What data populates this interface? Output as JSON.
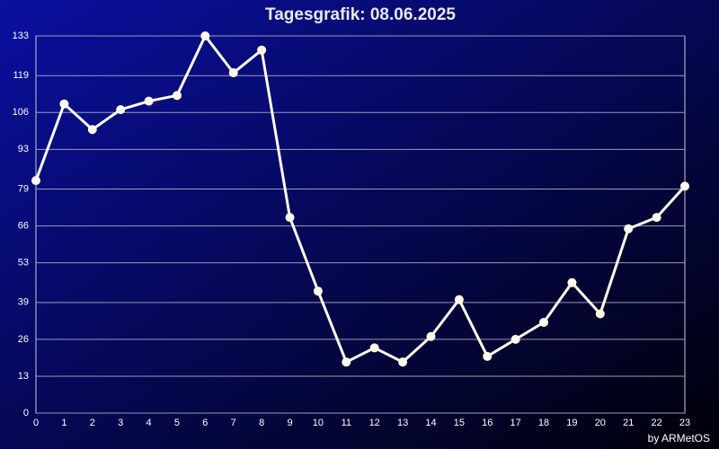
{
  "chart_data": {
    "type": "line",
    "title": "Tagesgrafik: 08.06.2025",
    "footer": "by ARMetOS",
    "x": [
      0,
      1,
      2,
      3,
      4,
      5,
      6,
      7,
      8,
      9,
      10,
      11,
      12,
      13,
      14,
      15,
      16,
      17,
      18,
      19,
      20,
      21,
      22,
      23
    ],
    "series": [
      {
        "color": "#fffbe8",
        "values": [
          82,
          109,
          100,
          107,
          110,
          112,
          133,
          120,
          128,
          69,
          43,
          18,
          23,
          18,
          27,
          40,
          20,
          26,
          32,
          46,
          35,
          65,
          69,
          80
        ]
      }
    ],
    "xlim": [
      0,
      23
    ],
    "xticks": [
      0,
      1,
      2,
      3,
      4,
      5,
      6,
      7,
      8,
      9,
      10,
      11,
      12,
      13,
      14,
      15,
      16,
      17,
      18,
      19,
      20,
      21,
      22,
      23
    ],
    "ylim": [
      0,
      133
    ],
    "yticks": [
      0,
      13,
      26,
      39,
      53,
      66,
      79,
      93,
      106,
      119,
      133
    ],
    "grid": true
  }
}
